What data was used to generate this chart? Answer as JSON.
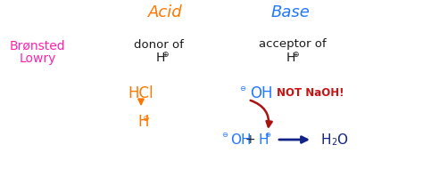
{
  "bg_color": "#ffffff",
  "title_acid": "Acid",
  "title_base": "Base",
  "title_acid_color": "#ff7700",
  "title_base_color": "#2277ff",
  "bronsted_line1": "Brønsted",
  "bronsted_line2": "Lowry",
  "bronsted_color": "#ff22aa",
  "dark_color": "#1a1a1a",
  "hcl_color": "#ff7700",
  "oh_top_color": "#2277ff",
  "not_naoh_color": "#cc1111",
  "oh_bottom_color": "#2277ff",
  "h_plus_bottom_color": "#2277ff",
  "h2o_color": "#112288",
  "arrow_down_color": "#ff7700",
  "arrow_curve_color": "#aa1111",
  "arrow_right_color": "#112288",
  "font": "Patrick Hand"
}
